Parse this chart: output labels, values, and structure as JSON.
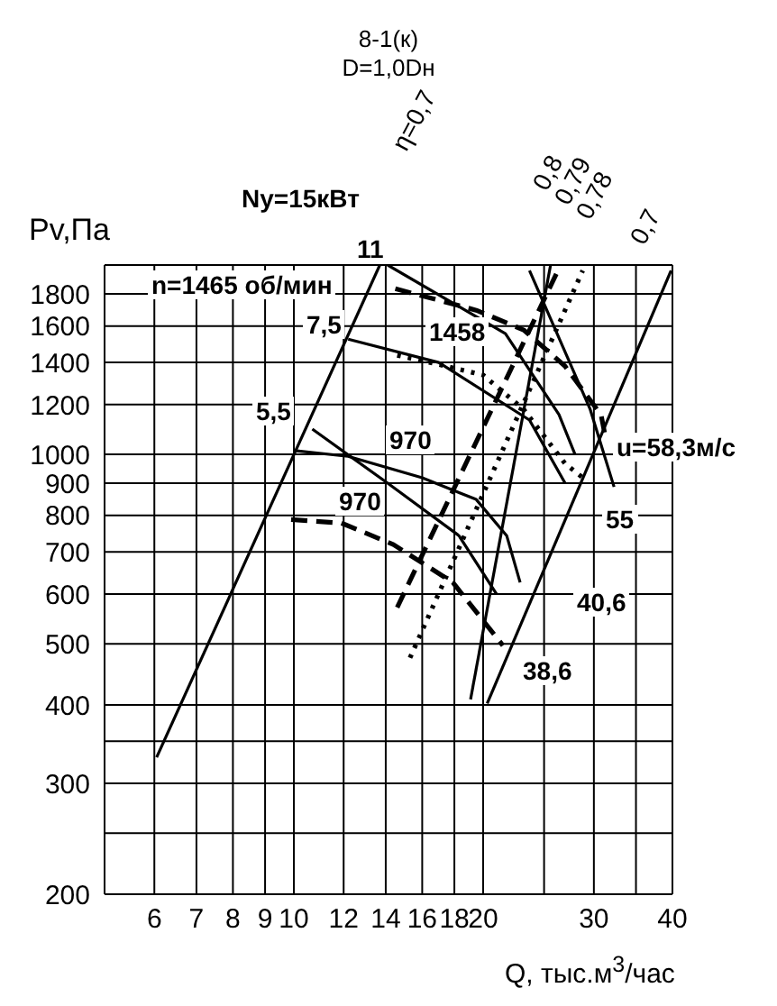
{
  "chart_data": {
    "type": "line",
    "title": "8-1(к)",
    "subtitle": "D=1,0Dн",
    "xlabel": "Q, тыс.м$^{3}$/час",
    "ylabel": "Pv,Па",
    "log": "xy",
    "grid": true,
    "marker": "none",
    "line_style": "solid",
    "xlim": [
      5,
      40
    ],
    "ylim": [
      200,
      2000
    ],
    "xticks": [
      6,
      7,
      8,
      9,
      10,
      12,
      14,
      16,
      18,
      20,
      {
        "value": 25,
        "label": null
      },
      30,
      {
        "value": 35,
        "label": null
      },
      40
    ],
    "yticks": [
      200,
      {
        "value": 250,
        "label": null
      },
      300,
      {
        "value": 350,
        "label": null
      },
      400,
      500,
      600,
      700,
      800,
      900,
      1000,
      1200,
      1400,
      1600,
      1800,
      {
        "value": 2000,
        "label": null
      }
    ],
    "series": [
      {
        "color": "#000000",
        "x": [
          10.1,
          12.2,
          16.0,
          19.5,
          21.8,
          22.9
        ],
        "values": [
          1013,
          993,
          918,
          848,
          743,
          626
        ]
      },
      {
        "color": "#000000",
        "line_style": "dashed",
        "x": [
          9.9,
          11.9,
          14.4,
          17.9,
          21.5
        ],
        "values": [
          788,
          778,
          719,
          626,
          497
        ]
      },
      {
        "color": "#000000",
        "line_style": "dashed",
        "x": [
          14.5,
          19.5,
          23.2,
          27.0,
          30.8,
          31.2
        ],
        "values": [
          1834,
          1695,
          1577,
          1381,
          1156,
          1082
        ]
      },
      {
        "color": "#000000",
        "line_style": "dotted",
        "x": [
          14.6,
          17.0,
          20.0,
          23.2,
          27.0,
          29.3
        ],
        "values": [
          1437,
          1390,
          1337,
          1179,
          967,
          906
        ]
      },
      {
        "color": "#000000",
        "x": [
          23.7,
          29.6,
          32.3
        ],
        "values": [
          1960,
          1179,
          888
        ]
      },
      {
        "color": "#000000",
        "x": [
          14.1,
          21.7,
          26.4,
          28.0
        ],
        "values": [
          2000,
          1556,
          1157,
          1000
        ]
      },
      {
        "color": "#000000",
        "x": [
          12.2,
          17.0,
          23.7,
          27.0
        ],
        "values": [
          1525,
          1400,
          1134,
          900
        ]
      },
      {
        "color": "#000000",
        "x": [
          10.7,
          14.1,
          18.3,
          21.0
        ],
        "values": [
          1097,
          900,
          743,
          600
        ]
      },
      {
        "color": "#000000",
        "x": [
          6.05,
          13.7
        ],
        "values": [
          330,
          2000
        ]
      },
      {
        "color": "#000000",
        "x": [
          19.1,
          25.6
        ],
        "values": [
          408,
          2000
        ]
      },
      {
        "color": "#000000",
        "line_style": "dashed",
        "x": [
          14.6,
          26.3
        ],
        "values": [
          571,
          1960
        ]
      },
      {
        "color": "#000000",
        "line_style": "dotted",
        "x": [
          15.3,
          28.8
        ],
        "values": [
          475,
          1960
        ]
      },
      {
        "color": "#000000",
        "x": [
          20.3,
          39.8
        ],
        "values": [
          402,
          1960
        ]
      }
    ],
    "annotations": [
      "Ny=15кВт",
      "n=1465 об/мин",
      "11",
      "u=58,3м/с",
      "η=0,7",
      "0,8",
      "0,79",
      "0,78",
      "0,7",
      "7,5",
      "1458",
      "5,5",
      "970",
      "970",
      "55",
      "40,6",
      "38,6"
    ]
  }
}
